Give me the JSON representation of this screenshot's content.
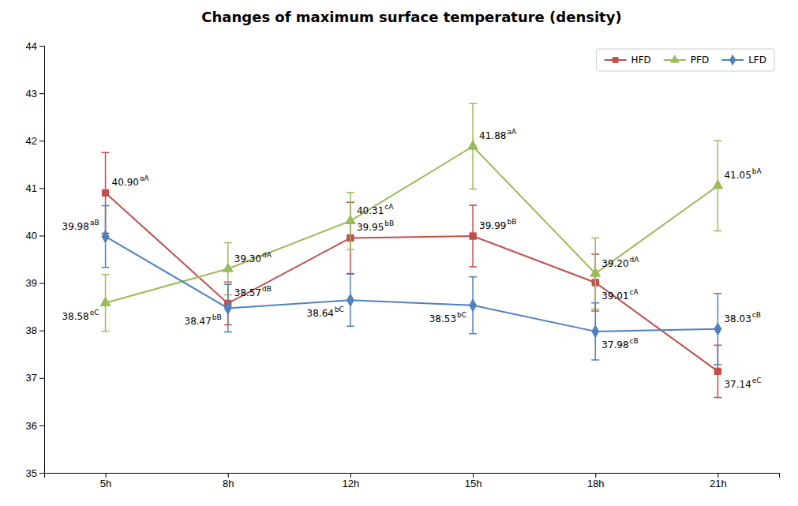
{
  "chart_data": {
    "type": "line",
    "title": "Changes of maximum surface temperature (density)",
    "categories": [
      "5h",
      "8h",
      "12h",
      "15h",
      "18h",
      "21h"
    ],
    "series": [
      {
        "name": "HFD",
        "color": "#C0504D",
        "marker": "square",
        "values": [
          40.9,
          38.57,
          39.95,
          39.99,
          39.01,
          37.14
        ],
        "errors": [
          0.85,
          0.45,
          0.75,
          0.65,
          0.6,
          0.55
        ],
        "value_labels": [
          "40.90",
          "38.57",
          "39.95",
          "39.99",
          "39.01",
          "37.14"
        ],
        "superscripts": [
          "aA",
          "dB",
          "bB",
          "bB",
          "cA",
          "eC"
        ]
      },
      {
        "name": "PFD",
        "color": "#9BBB59",
        "marker": "triangle",
        "values": [
          38.58,
          39.3,
          40.31,
          41.88,
          39.2,
          41.05
        ],
        "errors": [
          0.6,
          0.55,
          0.6,
          0.9,
          0.75,
          0.95
        ],
        "value_labels": [
          "38.58",
          "39.30",
          "40.31",
          "41.88",
          "39.20",
          "41.05"
        ],
        "superscripts": [
          "eC",
          "dA",
          "cA",
          "aA",
          "dA",
          "bA"
        ]
      },
      {
        "name": "LFD",
        "color": "#4F81BD",
        "marker": "diamond",
        "values": [
          39.98,
          38.47,
          38.64,
          38.53,
          37.98,
          38.03
        ],
        "errors": [
          0.65,
          0.5,
          0.55,
          0.6,
          0.6,
          0.75
        ],
        "value_labels": [
          "39.98",
          "38.47",
          "38.64",
          "38.53",
          "37.98",
          "38.03"
        ],
        "superscripts": [
          "aB",
          "bB",
          "bC",
          "bC",
          "cB",
          "cB"
        ]
      }
    ],
    "ylim": [
      35,
      44
    ],
    "yticks": [
      35,
      36,
      37,
      38,
      39,
      40,
      41,
      42,
      43,
      44
    ],
    "grid": false,
    "legend": "upper right",
    "data_labels": true
  }
}
